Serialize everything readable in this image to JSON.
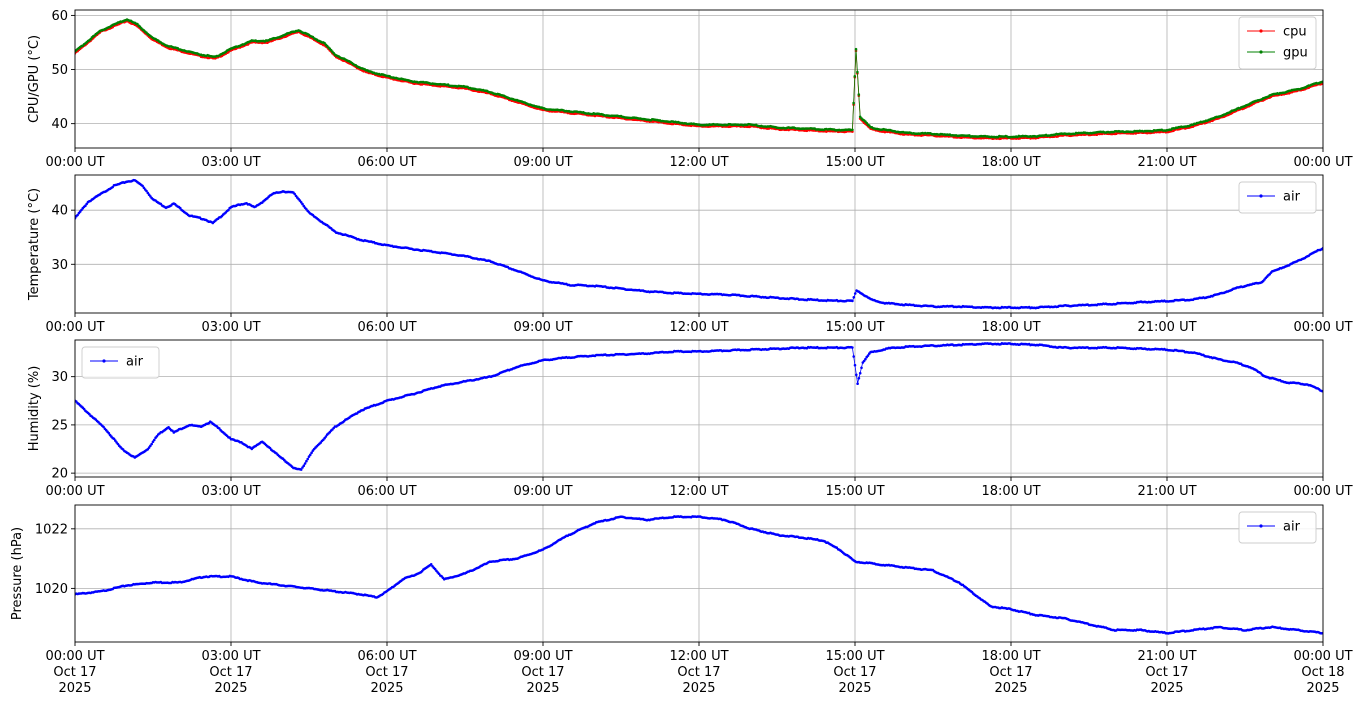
{
  "chart_data": [
    {
      "type": "line",
      "ylabel": "CPU/GPU (°C)",
      "ylim": [
        35.5,
        61
      ],
      "yticks": [
        40,
        50,
        60
      ],
      "xticks": [
        "00:00 UT",
        "03:00 UT",
        "06:00 UT",
        "09:00 UT",
        "12:00 UT",
        "15:00 UT",
        "18:00 UT",
        "21:00 UT",
        "00:00 UT"
      ],
      "xlim_hours": [
        0,
        24
      ],
      "grid": true,
      "legend": "top-right",
      "series": [
        {
          "name": "cpu",
          "color": "#ff0000",
          "x": [
            0,
            0.25,
            0.5,
            0.75,
            1.0,
            1.2,
            1.5,
            1.8,
            2.0,
            2.4,
            2.7,
            3.0,
            3.4,
            3.7,
            4.0,
            4.3,
            4.5,
            4.8,
            5.0,
            5.3,
            5.6,
            6.0,
            6.5,
            7.0,
            7.5,
            8.0,
            8.5,
            9.0,
            9.5,
            10.0,
            10.5,
            11.0,
            11.5,
            12.0,
            12.5,
            13.0,
            13.5,
            14.0,
            14.5,
            14.95,
            15.02,
            15.1,
            15.3,
            15.6,
            16.0,
            16.5,
            17.0,
            17.5,
            18.0,
            18.5,
            19.0,
            19.5,
            20.0,
            20.5,
            21.0,
            21.5,
            22.0,
            22.5,
            23.0,
            23.5,
            24.0
          ],
          "y": [
            53,
            55,
            57,
            58,
            59,
            58,
            55.5,
            54,
            53.5,
            52.5,
            52,
            53.5,
            55,
            55,
            56,
            57,
            56,
            54.5,
            52.5,
            51,
            49.5,
            48.5,
            47.5,
            47,
            46.5,
            45.5,
            44,
            42.5,
            42,
            41.5,
            41,
            40.5,
            40,
            39.5,
            39.5,
            39.5,
            39,
            38.8,
            38.6,
            38.5,
            53.5,
            41,
            39,
            38.5,
            38,
            37.8,
            37.5,
            37.3,
            37.3,
            37.4,
            37.8,
            38,
            38.2,
            38.3,
            38.5,
            39.5,
            41,
            43,
            45,
            46,
            47.5
          ]
        },
        {
          "name": "gpu",
          "color": "#008000",
          "x": [
            0,
            0.25,
            0.5,
            0.75,
            1.0,
            1.2,
            1.5,
            1.8,
            2.0,
            2.4,
            2.7,
            3.0,
            3.4,
            3.7,
            4.0,
            4.3,
            4.5,
            4.8,
            5.0,
            5.3,
            5.6,
            6.0,
            6.5,
            7.0,
            7.5,
            8.0,
            8.5,
            9.0,
            9.5,
            10.0,
            10.5,
            11.0,
            11.5,
            12.0,
            12.5,
            13.0,
            13.5,
            14.0,
            14.5,
            14.95,
            15.02,
            15.1,
            15.3,
            15.6,
            16.0,
            16.5,
            17.0,
            17.5,
            18.0,
            18.5,
            19.0,
            19.5,
            20.0,
            20.5,
            21.0,
            21.5,
            22.0,
            22.5,
            23.0,
            23.5,
            24.0
          ],
          "y": [
            53.3,
            55.3,
            57.2,
            58.3,
            59.3,
            58.3,
            55.8,
            54.3,
            53.8,
            52.8,
            52.3,
            53.8,
            55.3,
            55.3,
            56.3,
            57.3,
            56.3,
            54.8,
            52.8,
            51.3,
            49.8,
            48.8,
            47.8,
            47.3,
            46.8,
            45.8,
            44.3,
            42.8,
            42.3,
            41.8,
            41.3,
            40.8,
            40.3,
            39.8,
            39.8,
            39.8,
            39.3,
            39.1,
            38.9,
            38.8,
            53.8,
            41.3,
            39.3,
            38.8,
            38.3,
            38.1,
            37.8,
            37.6,
            37.6,
            37.7,
            38.1,
            38.3,
            38.5,
            38.6,
            38.8,
            39.8,
            41.3,
            43.3,
            45.3,
            46.3,
            47.8
          ]
        }
      ]
    },
    {
      "type": "line",
      "ylabel": "Temperature (°C)",
      "ylim": [
        21,
        46.5
      ],
      "yticks": [
        30,
        40
      ],
      "xticks": [
        "00:00 UT",
        "03:00 UT",
        "06:00 UT",
        "09:00 UT",
        "12:00 UT",
        "15:00 UT",
        "18:00 UT",
        "21:00 UT",
        "00:00 UT"
      ],
      "xlim_hours": [
        0,
        24
      ],
      "grid": true,
      "legend": "top-right",
      "series": [
        {
          "name": "air",
          "color": "#0000ff",
          "x": [
            0,
            0.25,
            0.5,
            0.75,
            1.0,
            1.15,
            1.3,
            1.5,
            1.75,
            1.9,
            2.0,
            2.2,
            2.5,
            2.65,
            2.8,
            3.0,
            3.15,
            3.3,
            3.45,
            3.6,
            3.8,
            4.0,
            4.2,
            4.35,
            4.5,
            4.8,
            5.0,
            5.5,
            6.0,
            6.5,
            7.0,
            7.5,
            8.0,
            8.5,
            9.0,
            9.5,
            10.0,
            10.5,
            11.0,
            11.5,
            12.0,
            12.5,
            13.0,
            13.5,
            14.0,
            14.5,
            14.95,
            15.03,
            15.15,
            15.3,
            15.6,
            16.0,
            16.5,
            17.0,
            17.5,
            18.0,
            18.5,
            19.0,
            19.5,
            20.0,
            20.5,
            21.0,
            21.5,
            21.8,
            22.0,
            22.3,
            22.6,
            22.8,
            23.0,
            23.5,
            24.0
          ],
          "y": [
            38.5,
            41.5,
            43,
            44.5,
            45.3,
            45.5,
            44.5,
            42,
            40.5,
            41.2,
            40.5,
            39,
            38.3,
            37.6,
            38.8,
            40.5,
            41,
            41.3,
            40.5,
            41.5,
            43,
            43.5,
            43.2,
            41.5,
            39.5,
            37.5,
            36,
            34.5,
            33.5,
            32.8,
            32.2,
            31.5,
            30.5,
            28.8,
            27,
            26.2,
            26,
            25.5,
            25,
            24.7,
            24.5,
            24.4,
            24.1,
            23.8,
            23.5,
            23.3,
            23.2,
            25.2,
            24.5,
            23.5,
            22.8,
            22.5,
            22.2,
            22.2,
            22,
            22,
            22,
            22.3,
            22.5,
            22.7,
            23,
            23.2,
            23.5,
            24,
            24.5,
            25.5,
            26.3,
            26.5,
            28.5,
            30.5,
            33
          ]
        }
      ]
    },
    {
      "type": "line",
      "ylabel": "Humidity (%)",
      "ylim": [
        19.6,
        33.8
      ],
      "yticks": [
        20,
        25,
        30
      ],
      "xticks": [
        "00:00 UT",
        "03:00 UT",
        "06:00 UT",
        "09:00 UT",
        "12:00 UT",
        "15:00 UT",
        "18:00 UT",
        "21:00 UT",
        "00:00 UT"
      ],
      "xlim_hours": [
        0,
        24
      ],
      "grid": true,
      "legend": "top-left",
      "series": [
        {
          "name": "air",
          "color": "#0000ff",
          "x": [
            0,
            0.3,
            0.6,
            0.9,
            1.15,
            1.4,
            1.6,
            1.8,
            1.9,
            2.0,
            2.2,
            2.4,
            2.6,
            2.8,
            3.0,
            3.2,
            3.4,
            3.6,
            3.8,
            4.0,
            4.2,
            4.35,
            4.6,
            5.0,
            5.5,
            6.0,
            6.5,
            7.0,
            7.5,
            8.0,
            8.5,
            9.0,
            9.5,
            10.0,
            10.5,
            11.0,
            11.5,
            12.0,
            12.5,
            13.0,
            13.5,
            14.0,
            14.5,
            14.95,
            15.05,
            15.15,
            15.3,
            15.6,
            16.0,
            16.5,
            17.0,
            17.5,
            18.0,
            18.5,
            19.0,
            19.5,
            20.0,
            20.5,
            21.0,
            21.5,
            22.0,
            22.3,
            22.6,
            22.9,
            23.3,
            23.7,
            24.0
          ],
          "y": [
            27.5,
            26,
            24.5,
            22.5,
            21.6,
            22.5,
            24,
            24.8,
            24.2,
            24.5,
            25,
            24.8,
            25.3,
            24.5,
            23.5,
            23.2,
            22.5,
            23.3,
            22.3,
            21.5,
            20.5,
            20.4,
            22.5,
            24.8,
            26.5,
            27.5,
            28.2,
            29,
            29.5,
            30,
            31,
            31.7,
            32,
            32.2,
            32.3,
            32.4,
            32.6,
            32.6,
            32.7,
            32.8,
            32.9,
            33,
            33,
            33,
            29.3,
            31.5,
            32.5,
            32.9,
            33.1,
            33.2,
            33.3,
            33.4,
            33.4,
            33.3,
            33,
            33,
            33,
            32.9,
            32.8,
            32.5,
            31.8,
            31.5,
            31,
            30,
            29.4,
            29.2,
            28.5
          ]
        }
      ]
    },
    {
      "type": "line",
      "ylabel": "Pressure (hPa)",
      "ylim": [
        1018.2,
        1022.8
      ],
      "yticks": [
        1020,
        1022
      ],
      "xticks": [
        "00:00 UT\nOct 17\n2025",
        "03:00 UT\nOct 17\n2025",
        "06:00 UT\nOct 17\n2025",
        "09:00 UT\nOct 17\n2025",
        "12:00 UT\nOct 17\n2025",
        "15:00 UT\nOct 17\n2025",
        "18:00 UT\nOct 17\n2025",
        "21:00 UT\nOct 17\n2025",
        "00:00 UT\nOct 18\n2025"
      ],
      "xlim_hours": [
        0,
        24
      ],
      "grid": true,
      "legend": "top-right",
      "series": [
        {
          "name": "air",
          "color": "#0000ff",
          "x": [
            0,
            0.5,
            1.0,
            1.5,
            2.0,
            2.5,
            3.0,
            3.5,
            4.0,
            4.5,
            5.0,
            5.5,
            5.8,
            6.0,
            6.3,
            6.6,
            6.85,
            7.1,
            7.5,
            8.0,
            8.5,
            9.0,
            9.5,
            10.0,
            10.5,
            11.0,
            11.5,
            12.0,
            12.5,
            13.0,
            13.5,
            14.0,
            14.4,
            14.7,
            15.0,
            15.5,
            16.0,
            16.5,
            17.0,
            17.3,
            17.6,
            18.0,
            18.5,
            19.0,
            19.5,
            20.0,
            20.5,
            21.0,
            21.5,
            22.0,
            22.5,
            23.0,
            23.5,
            24.0
          ],
          "y": [
            1019.8,
            1019.9,
            1020.1,
            1020.2,
            1020.2,
            1020.4,
            1020.4,
            1020.2,
            1020.1,
            1020,
            1019.9,
            1019.8,
            1019.7,
            1019.9,
            1020.3,
            1020.5,
            1020.8,
            1020.3,
            1020.5,
            1020.9,
            1021,
            1021.3,
            1021.8,
            1022.2,
            1022.4,
            1022.3,
            1022.4,
            1022.4,
            1022.3,
            1022,
            1021.8,
            1021.7,
            1021.6,
            1021.3,
            1020.9,
            1020.8,
            1020.7,
            1020.6,
            1020.2,
            1019.8,
            1019.4,
            1019.3,
            1019.1,
            1019,
            1018.8,
            1018.6,
            1018.6,
            1018.5,
            1018.6,
            1018.7,
            1018.6,
            1018.7,
            1018.6,
            1018.5
          ]
        }
      ]
    }
  ]
}
